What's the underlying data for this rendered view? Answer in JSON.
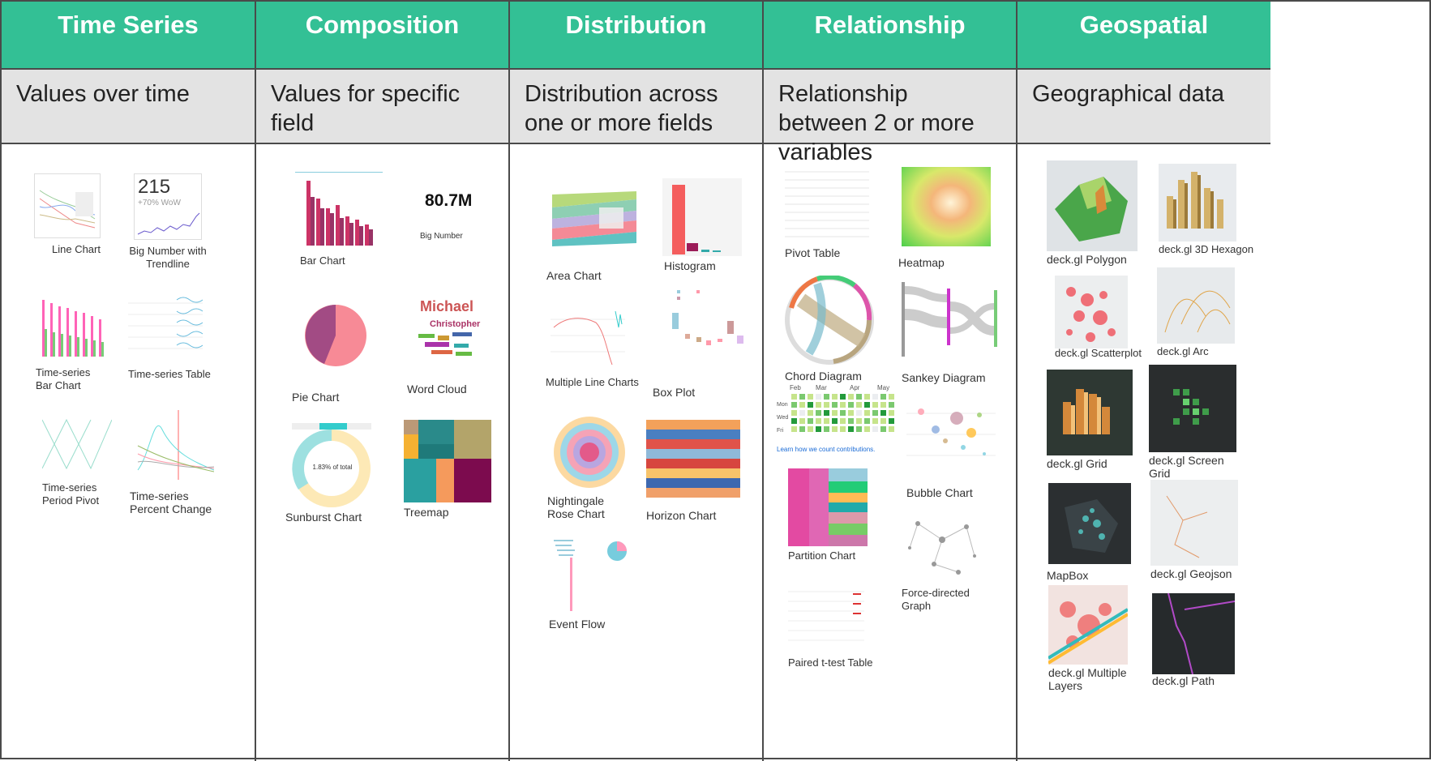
{
  "columns": [
    {
      "title": "Time Series",
      "subtitle": "Values over time",
      "charts": [
        "Line Chart",
        "Big Number with Trendline",
        "Time-series Bar Chart",
        "Time-series Table",
        "Time-series Period Pivot",
        "Time-series Percent Change"
      ]
    },
    {
      "title": "Composition",
      "subtitle": "Values for specific field",
      "charts": [
        "Bar Chart",
        "Big Number",
        "Pie Chart",
        "Word Cloud",
        "Sunburst Chart",
        "Treemap"
      ]
    },
    {
      "title": "Distribution",
      "subtitle": "Distribution across one or more fields",
      "charts": [
        "Area Chart",
        "Histogram",
        "Multiple Line Charts",
        "Box Plot",
        "Nightingale Rose Chart",
        "Horizon Chart",
        "Event Flow"
      ]
    },
    {
      "title": "Relationship",
      "subtitle": "Relationship between 2 or more variables",
      "charts": [
        "Pivot Table",
        "Heatmap",
        "Chord Diagram",
        "Sankey Diagram",
        "Bubble Chart",
        "Partition Chart",
        "Force-directed Graph",
        "Paired t-test Table"
      ]
    },
    {
      "title": "Geospatial",
      "subtitle": "Geographical data",
      "charts": [
        "deck.gl Polygon",
        "deck.gl 3D Hexagon",
        "deck.gl Scatterplot",
        "deck.gl Arc",
        "deck.gl Grid",
        "deck.gl Screen Grid",
        "MapBox",
        "deck.gl Geojson",
        "deck.gl Multiple Layers",
        "deck.gl Path"
      ]
    }
  ],
  "thumbs": {
    "big_number_value": "215",
    "big_number_change": "+70% WoW",
    "big_number_plain": "80.7M",
    "sunburst_center": "1.83% of total",
    "word_cloud_words": [
      "Michael",
      "Christopher"
    ],
    "heatmap_months": [
      "Feb",
      "Mar",
      "Apr",
      "May"
    ],
    "heatmap_days": [
      "Mon",
      "Wed",
      "Fri"
    ],
    "heatmap_link": "Learn how we count contributions."
  }
}
